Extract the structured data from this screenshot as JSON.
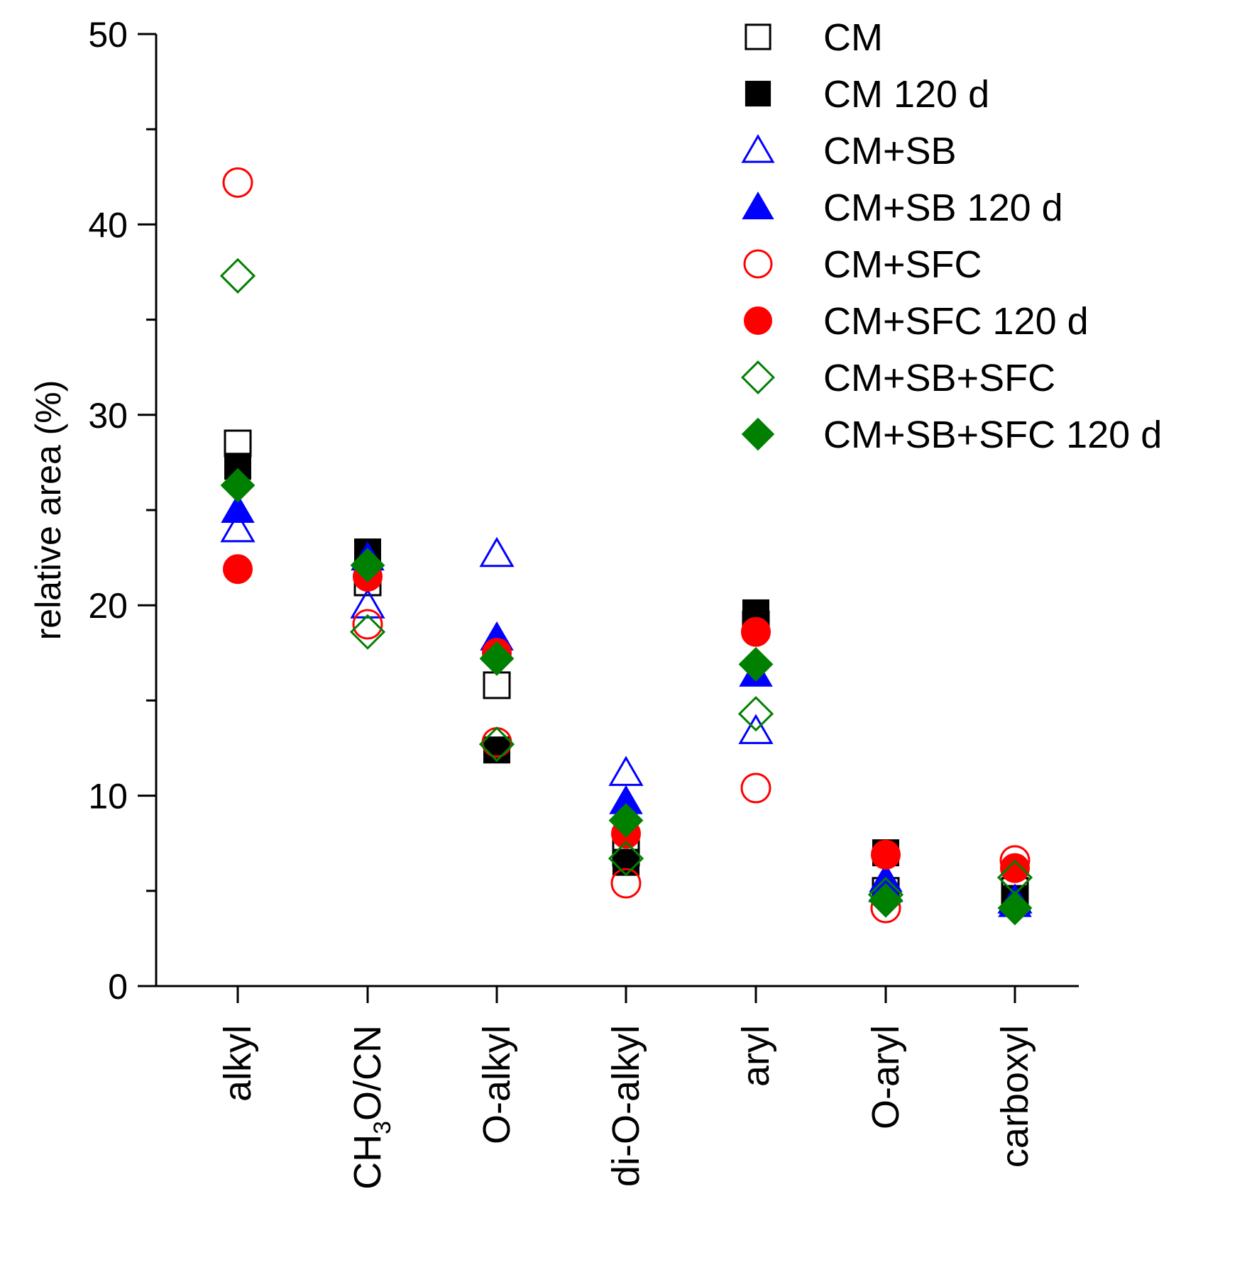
{
  "chart_data": {
    "type": "scatter",
    "ylabel": "relative area (%)",
    "ylim": [
      0,
      50
    ],
    "yticks": [
      "0",
      "10",
      "20",
      "30",
      "40",
      "50"
    ],
    "grid": false,
    "legend_position": "top-right",
    "categories": [
      "alkyl",
      "CH3O/CN",
      "O-alkyl",
      "di-O-alkyl",
      "aryl",
      "O-aryl",
      "carboxyl"
    ],
    "series": [
      {
        "name": "CM",
        "marker": "square",
        "filled": false,
        "color": "#000000",
        "values": [
          28.5,
          21.2,
          15.8,
          7.0,
          19.0,
          5.0,
          5.0
        ]
      },
      {
        "name": "CM 120 d",
        "marker": "square",
        "filled": true,
        "color": "#000000",
        "values": [
          27.3,
          22.8,
          12.4,
          6.5,
          19.6,
          7.0,
          4.6
        ]
      },
      {
        "name": "CM+SB",
        "marker": "triangle",
        "filled": false,
        "color": "#0000ff",
        "values": [
          24.0,
          20.0,
          22.7,
          11.2,
          13.4,
          5.1,
          4.5
        ]
      },
      {
        "name": "CM+SB 120 d",
        "marker": "triangle",
        "filled": true,
        "color": "#0000ff",
        "values": [
          25.0,
          22.5,
          18.3,
          9.7,
          16.4,
          5.6,
          4.3
        ]
      },
      {
        "name": "CM+SFC",
        "marker": "circle",
        "filled": false,
        "color": "#ff0000",
        "values": [
          42.2,
          19.0,
          12.8,
          5.4,
          10.4,
          4.1,
          6.6
        ]
      },
      {
        "name": "CM+SFC 120 d",
        "marker": "circle",
        "filled": true,
        "color": "#ff0000",
        "values": [
          21.9,
          21.5,
          17.5,
          8.0,
          18.6,
          6.9,
          6.2
        ]
      },
      {
        "name": "CM+SB+SFC",
        "marker": "diamond",
        "filled": false,
        "color": "#008000",
        "values": [
          37.3,
          18.6,
          12.7,
          6.7,
          14.3,
          4.8,
          5.7
        ]
      },
      {
        "name": "CM+SB+SFC 120 d",
        "marker": "diamond",
        "filled": true,
        "color": "#008000",
        "values": [
          26.3,
          22.1,
          17.2,
          8.7,
          16.9,
          4.5,
          4.1
        ]
      }
    ]
  }
}
